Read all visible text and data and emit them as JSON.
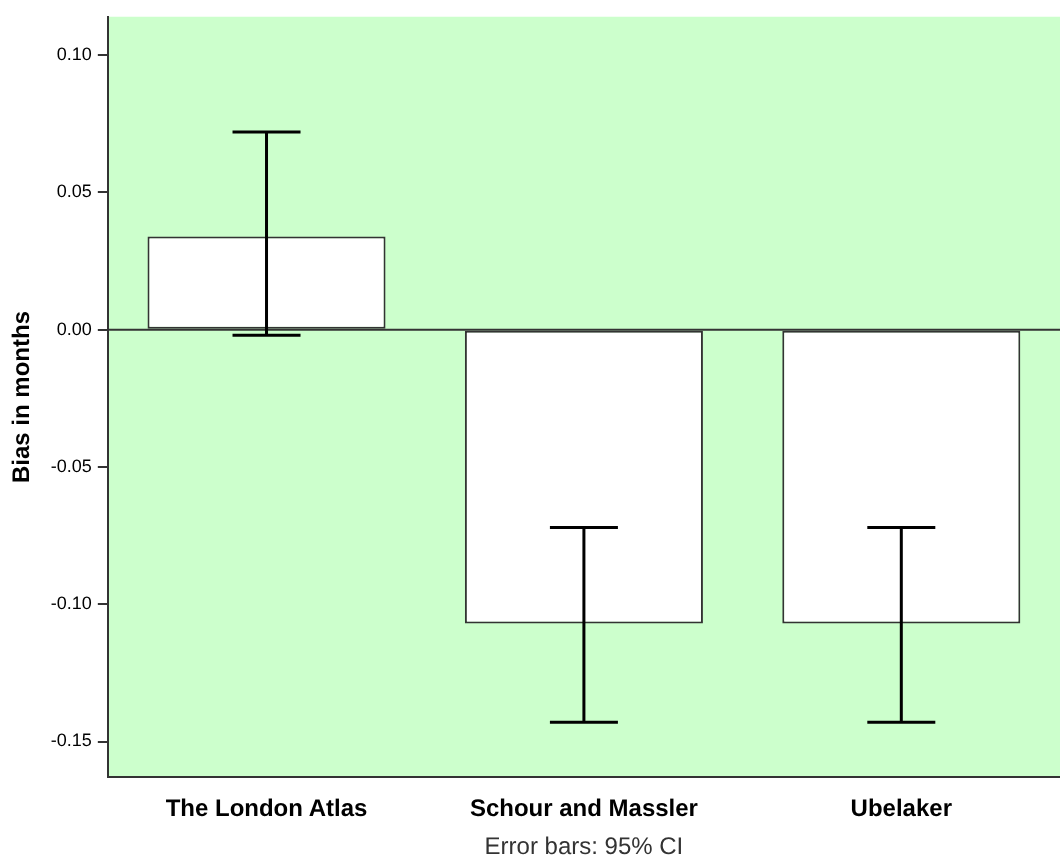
{
  "chart_data": {
    "type": "bar",
    "ylabel": "Bias in months",
    "categories": [
      "The London Atlas",
      "Schour and Massler",
      "Ubelaker"
    ],
    "values": [
      0.034,
      -0.107,
      -0.107
    ],
    "errors": [
      [
        -0.002,
        0.072
      ],
      [
        -0.143,
        -0.072
      ],
      [
        -0.143,
        -0.072
      ]
    ],
    "color": "#ffffff",
    "ylim": [
      -0.163,
      0.114
    ],
    "yticks": [
      {
        "value": -0.15,
        "label": "-0.15"
      },
      {
        "value": -0.1,
        "label": "-0.10"
      },
      {
        "value": -0.05,
        "label": "-0.05"
      },
      {
        "value": 0,
        "label": "0.00"
      },
      {
        "value": 0.05,
        "label": "0.05"
      },
      {
        "value": 0.1,
        "label": "0.10"
      }
    ],
    "ref_lines": [
      {
        "axis": "y",
        "value": 0,
        "color": "#333333"
      }
    ],
    "grid": false,
    "legend": false,
    "annotations": [
      "Error bars: 95% CI"
    ]
  }
}
